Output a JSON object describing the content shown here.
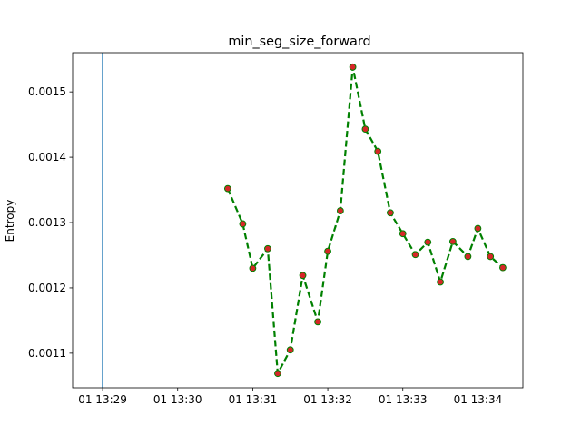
{
  "chart_data": {
    "type": "line",
    "title": "min_seg_size_forward",
    "xlabel": "",
    "ylabel": "Entropy",
    "x_tick_labels": [
      "01 13:29",
      "01 13:30",
      "01 13:31",
      "01 13:32",
      "01 13:33",
      "01 13:34"
    ],
    "x_tick_minutes": [
      29,
      30,
      31,
      32,
      33,
      34
    ],
    "y_ticks": [
      0.0011,
      0.0012,
      0.0013,
      0.0014,
      0.0015
    ],
    "y_tick_labels": [
      "0.0011",
      "0.0012",
      "0.0013",
      "0.0014",
      "0.0015"
    ],
    "xlim_minutes": [
      28.6,
      34.6
    ],
    "ylim": [
      0.001047,
      0.00156
    ],
    "grid": false,
    "vertical_line": {
      "x_minute": 29.0,
      "color": "#1f77b4"
    },
    "series": [
      {
        "line_color": "#008000",
        "line_style": "dashed",
        "marker_face": "#d62728",
        "x_minutes": [
          30.667,
          30.867,
          31.0,
          31.2,
          31.333,
          31.5,
          31.667,
          31.867,
          32.0,
          32.167,
          32.333,
          32.5,
          32.667,
          32.833,
          33.0,
          33.167,
          33.333,
          33.5,
          33.667,
          33.867,
          34.0,
          34.167,
          34.333
        ],
        "values": [
          0.001352,
          0.001298,
          0.00123,
          0.00126,
          0.001069,
          0.001105,
          0.001219,
          0.001148,
          0.001256,
          0.001318,
          0.001538,
          0.001443,
          0.001409,
          0.001315,
          0.001283,
          0.001251,
          0.00127,
          0.001209,
          0.001271,
          0.001248,
          0.001291,
          0.001248,
          0.001231
        ]
      }
    ]
  }
}
